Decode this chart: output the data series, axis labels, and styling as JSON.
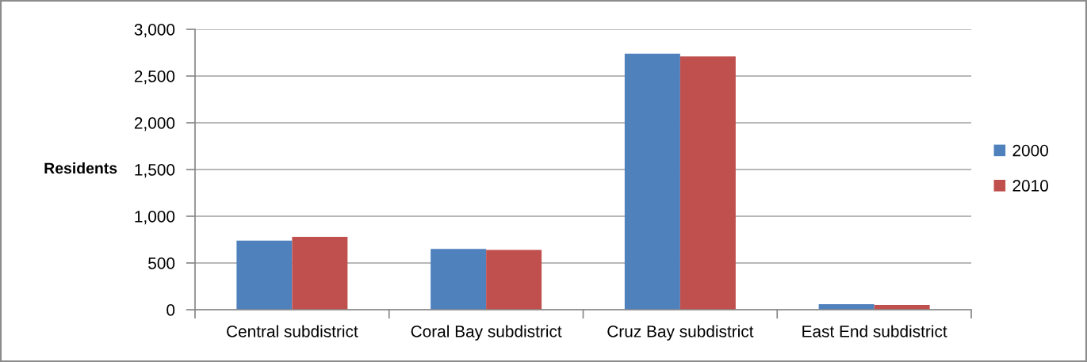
{
  "chart_data": {
    "type": "bar",
    "ylabel": "Residents",
    "categories": [
      "Central subdistrict",
      "Coral Bay subdistrict",
      "Cruz Bay subdistrict",
      "East End subdistrict"
    ],
    "series": [
      {
        "name": "2000",
        "color": "#4f81bd",
        "values": [
          740,
          650,
          2740,
          60
        ]
      },
      {
        "name": "2010",
        "color": "#c0504d",
        "values": [
          780,
          640,
          2710,
          50
        ]
      }
    ],
    "ylim": [
      0,
      3000
    ],
    "yticks": [
      0,
      500,
      {
        "value": 1000,
        "label": "1,000"
      },
      {
        "value": 1500,
        "label": "1,500"
      },
      {
        "value": 2000,
        "label": "2,000"
      },
      {
        "value": 2500,
        "label": "2,500"
      },
      {
        "value": 3000,
        "label": "3,000"
      }
    ],
    "grid": "y",
    "legend": "right"
  }
}
